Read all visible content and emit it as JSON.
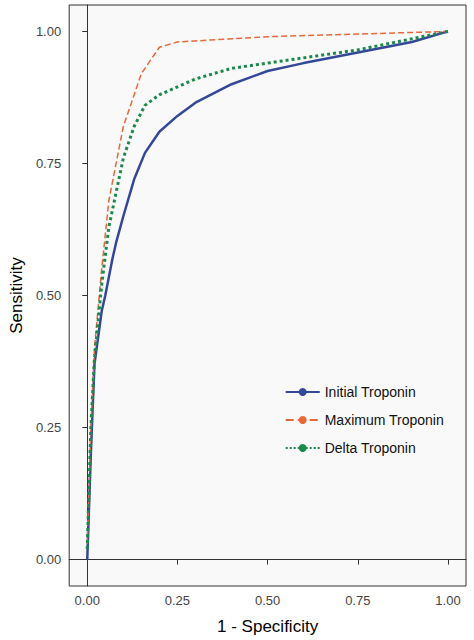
{
  "chart_data": {
    "type": "line",
    "x_label": "1 - Specificity",
    "y_label": "Sensitivity",
    "xlim": [
      -0.05,
      1.05
    ],
    "ylim": [
      -0.05,
      1.05
    ],
    "xticks": [
      {
        "value": 0,
        "label": "0.00"
      },
      {
        "value": 0.25,
        "label": "0.25"
      },
      {
        "value": 0.5,
        "label": "0.50"
      },
      {
        "value": 0.75,
        "label": "0.75"
      },
      {
        "value": 1,
        "label": "1.00"
      }
    ],
    "yticks": [
      {
        "value": 0,
        "label": "0.00"
      },
      {
        "value": 0.25,
        "label": "0.25"
      },
      {
        "value": 0.5,
        "label": "0.50"
      },
      {
        "value": 0.75,
        "label": "0.75"
      },
      {
        "value": 1,
        "label": "1.00"
      }
    ],
    "grid": false,
    "legend": "bottom-right",
    "series": [
      {
        "name": "Initial Troponin",
        "color": "#34489a",
        "line_style": "solid",
        "x": [
          0,
          0.01,
          0.02,
          0.03,
          0.04,
          0.05,
          0.07,
          0.08,
          0.1,
          0.13,
          0.16,
          0.2,
          0.25,
          0.3,
          0.4,
          0.5,
          0.6,
          0.75,
          0.9,
          1
        ],
        "values": [
          0,
          0.2,
          0.37,
          0.42,
          0.47,
          0.5,
          0.57,
          0.6,
          0.65,
          0.72,
          0.77,
          0.81,
          0.84,
          0.865,
          0.9,
          0.925,
          0.94,
          0.96,
          0.98,
          1
        ]
      },
      {
        "name": "Maximum Troponin",
        "color": "#e8683a",
        "line_style": "dashed",
        "x": [
          0,
          0.01,
          0.02,
          0.04,
          0.06,
          0.1,
          0.15,
          0.2,
          0.25,
          0.5,
          0.75,
          1
        ],
        "values": [
          0.03,
          0.25,
          0.4,
          0.55,
          0.68,
          0.82,
          0.92,
          0.97,
          0.98,
          0.99,
          0.995,
          1
        ]
      },
      {
        "name": "Delta Troponin",
        "color": "#1a8a4a",
        "line_style": "dotted",
        "x": [
          0,
          0.01,
          0.02,
          0.04,
          0.06,
          0.1,
          0.13,
          0.16,
          0.2,
          0.3,
          0.4,
          0.5,
          0.75,
          1
        ],
        "values": [
          0.02,
          0.25,
          0.38,
          0.52,
          0.63,
          0.76,
          0.82,
          0.86,
          0.88,
          0.91,
          0.93,
          0.94,
          0.965,
          1
        ]
      }
    ]
  }
}
